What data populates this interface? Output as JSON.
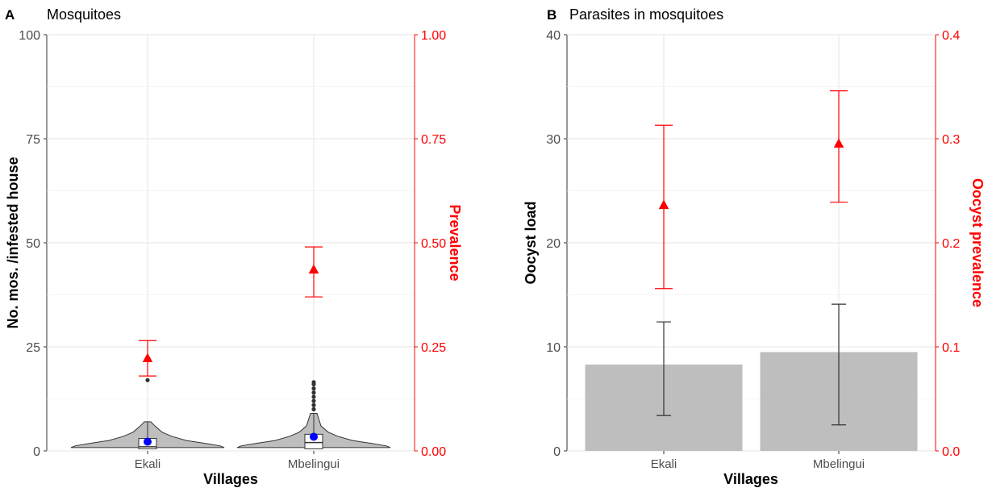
{
  "colors": {
    "accent_red": "#ff0000",
    "mean_blue": "#0000ff",
    "bar_grey": "#bebebe",
    "violin_grey": "#bebebe"
  },
  "chart_data": [
    {
      "type": "violin",
      "panel_label": "A",
      "title": "Mosquitoes",
      "xlabel": "Villages",
      "ylabel": "No. mos. /infested house",
      "y2label": "Prevalence",
      "categories": [
        "Ekali",
        "Mbelingui"
      ],
      "ylim": [
        0,
        100
      ],
      "y2lim": [
        0,
        1
      ],
      "yticks": [
        "0",
        "25",
        "50",
        "75",
        "100"
      ],
      "y2ticks": [
        "0.00",
        "0.25",
        "0.50",
        "0.75",
        "1.00"
      ],
      "grid": true,
      "series": [
        {
          "name": "No. mos. /infested house",
          "axis": "left",
          "mean": [
            2.2,
            3.4
          ],
          "box": [
            {
              "q1": 0.5,
              "median": 1,
              "q3": 3,
              "whisker_high": 7
            },
            {
              "q1": 0.5,
              "median": 2,
              "q3": 4,
              "whisker_high": 9
            }
          ],
          "outliers": [
            [
              17
            ],
            [
              10,
              11,
              12,
              13,
              14,
              15,
              16,
              16.5
            ]
          ]
        },
        {
          "name": "Prevalence",
          "axis": "right",
          "values": [
            0.222,
            0.435
          ],
          "ci_low": [
            0.18,
            0.37
          ],
          "ci_high": [
            0.265,
            0.49
          ]
        }
      ]
    },
    {
      "type": "bar",
      "panel_label": "B",
      "title": "Parasites in mosquitoes",
      "xlabel": "Villages",
      "ylabel": "Oocyst load",
      "y2label": "Oocyst prevalence",
      "categories": [
        "Ekali",
        "Mbelingui"
      ],
      "ylim": [
        0,
        40
      ],
      "y2lim": [
        0,
        0.4
      ],
      "yticks": [
        "0",
        "10",
        "20",
        "30",
        "40"
      ],
      "y2ticks": [
        "0.0",
        "0.1",
        "0.2",
        "0.3",
        "0.4"
      ],
      "grid": true,
      "series": [
        {
          "name": "Oocyst load",
          "axis": "left",
          "values": [
            8.3,
            9.5
          ],
          "err_low": [
            3.4,
            2.5
          ],
          "err_high": [
            12.4,
            14.1
          ]
        },
        {
          "name": "Oocyst prevalence",
          "axis": "right",
          "values": [
            0.236,
            0.295
          ],
          "ci_low": [
            0.156,
            0.239
          ],
          "ci_high": [
            0.313,
            0.346
          ]
        }
      ]
    }
  ]
}
